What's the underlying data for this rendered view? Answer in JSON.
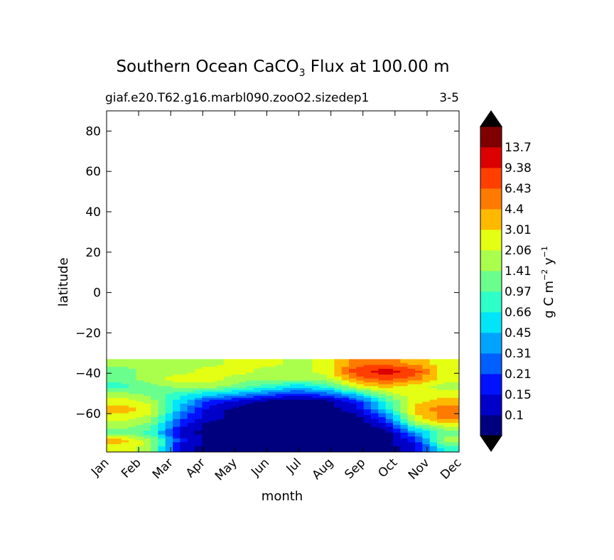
{
  "title": {
    "prefix": "Southern Ocean CaCO",
    "sub": "3",
    "suffix": " Flux at 100.00 m"
  },
  "subtitle_left": "giaf.e20.T62.g16.marbl090.zooO2.sizedep1",
  "subtitle_right": "3-5",
  "colorbar": {
    "label_prefix": "g C m",
    "label_exp1": "−2",
    "label_mid": " y",
    "label_exp2": "−1",
    "levels": [
      "0.1",
      "0.15",
      "0.21",
      "0.31",
      "0.45",
      "0.66",
      "0.97",
      "1.41",
      "2.06",
      "3.01",
      "4.4",
      "6.43",
      "9.38",
      "13.7"
    ],
    "colors": [
      "#00007f",
      "#0000c8",
      "#0012ff",
      "#0060ff",
      "#00a4ff",
      "#00e5f7",
      "#2effc9",
      "#6aff8d",
      "#aaff4d",
      "#e4ff13",
      "#ffb900",
      "#ff7a00",
      "#ff3f00",
      "#dc0000",
      "#7f0000"
    ],
    "under_color": "#000000",
    "over_color": "#000000"
  },
  "chart_data": {
    "type": "heatmap",
    "title": "Southern Ocean CaCO3 Flux at 100.00 m",
    "xlabel": "month",
    "ylabel": "latitude",
    "x_categories": [
      "Jan",
      "Feb",
      "Mar",
      "Apr",
      "May",
      "Jun",
      "Jul",
      "Aug",
      "Sep",
      "Oct",
      "Nov",
      "Dec"
    ],
    "yticks": [
      "80",
      "60",
      "40",
      "20",
      "0",
      "−20",
      "−40",
      "−60"
    ],
    "ytick_values": [
      80,
      60,
      40,
      20,
      0,
      -20,
      -40,
      -60
    ],
    "ylim": [
      -79,
      90
    ],
    "data_lat_range": [
      -79,
      -33
    ],
    "grid": false,
    "contour_lines": true,
    "lat_rows": [
      -34,
      -38,
      -42,
      -46,
      -50,
      -54,
      -58,
      -62,
      -66,
      -70,
      -74,
      -78
    ],
    "levels_index_grid": [
      [
        8,
        8,
        8,
        8,
        9,
        9,
        8,
        9,
        11,
        11,
        10,
        9
      ],
      [
        7,
        8,
        8,
        9,
        9,
        8,
        8,
        9,
        12,
        13,
        12,
        9
      ],
      [
        7,
        8,
        9,
        9,
        8,
        8,
        8,
        8,
        11,
        12,
        11,
        9
      ],
      [
        6,
        7,
        8,
        8,
        7,
        6,
        5,
        6,
        9,
        10,
        9,
        8
      ],
      [
        8,
        7,
        6,
        5,
        4,
        3,
        2,
        3,
        5,
        8,
        9,
        9
      ],
      [
        9,
        8,
        5,
        2,
        1,
        0,
        0,
        0,
        2,
        6,
        9,
        10
      ],
      [
        10,
        9,
        4,
        1,
        0,
        0,
        0,
        0,
        1,
        5,
        10,
        11
      ],
      [
        9,
        8,
        3,
        1,
        0,
        0,
        0,
        0,
        0,
        3,
        9,
        11
      ],
      [
        8,
        7,
        2,
        0,
        0,
        0,
        0,
        0,
        0,
        1,
        7,
        9
      ],
      [
        7,
        6,
        1,
        0,
        0,
        0,
        0,
        0,
        0,
        0,
        4,
        7
      ],
      [
        10,
        8,
        2,
        0,
        0,
        0,
        0,
        0,
        0,
        0,
        2,
        8
      ],
      [
        9,
        8,
        1,
        0,
        0,
        0,
        0,
        0,
        0,
        0,
        1,
        6
      ]
    ]
  }
}
